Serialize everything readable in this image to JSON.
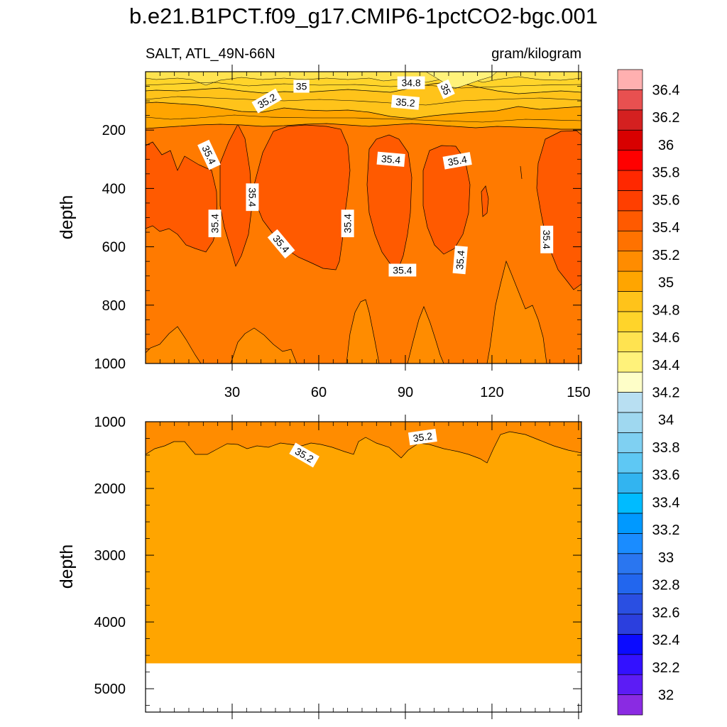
{
  "chart_data": {
    "type": "contour",
    "title": "b.e21.B1PCT.f09_g17.CMIP6-1pctCO2-bgc.001",
    "variable_label": "SALT, ATL_49N-66N",
    "units_label": "gram/kilogram",
    "panels": [
      {
        "name": "upper",
        "xlim": [
          0,
          151
        ],
        "ylim": [
          0,
          1000
        ],
        "y_reversed": true,
        "ylabel": "depth",
        "x_ticks": [
          30,
          60,
          90,
          120,
          150
        ],
        "x_tick_labels": [
          "30",
          "60",
          "90",
          "120",
          "150"
        ],
        "y_ticks": [
          200,
          400,
          600,
          800,
          1000
        ],
        "y_tick_labels": [
          "200",
          "400",
          "600",
          "800",
          "1000"
        ],
        "contour_labels": [
          {
            "text": "34.8",
            "x": 92,
            "y": 38,
            "angle": 0
          },
          {
            "text": "35",
            "x": 54,
            "y": 50,
            "angle": 0
          },
          {
            "text": "35",
            "x": 104,
            "y": 60,
            "angle": 65
          },
          {
            "text": "35.2",
            "x": 42,
            "y": 100,
            "angle": -30
          },
          {
            "text": "35.2",
            "x": 90,
            "y": 105,
            "angle": 5
          },
          {
            "text": "35.4",
            "x": 22,
            "y": 285,
            "angle": 65
          },
          {
            "text": "35.4",
            "x": 85,
            "y": 300,
            "angle": 5
          },
          {
            "text": "35.4",
            "x": 108,
            "y": 305,
            "angle": -10
          },
          {
            "text": "35.4",
            "x": 37,
            "y": 430,
            "angle": 90
          },
          {
            "text": "35.4",
            "x": 24,
            "y": 520,
            "angle": -90
          },
          {
            "text": "35.4",
            "x": 70,
            "y": 520,
            "angle": -90
          },
          {
            "text": "35.4",
            "x": 139,
            "y": 575,
            "angle": 90
          },
          {
            "text": "35.4",
            "x": 47,
            "y": 590,
            "angle": 50
          },
          {
            "text": "35.4",
            "x": 109,
            "y": 645,
            "angle": -85
          },
          {
            "text": "35.4",
            "x": 89,
            "y": 680,
            "angle": 0
          }
        ]
      },
      {
        "name": "lower",
        "xlim": [
          0,
          151
        ],
        "ylim": [
          1000,
          5350
        ],
        "y_reversed": true,
        "ylabel": "depth",
        "y_ticks": [
          1000,
          2000,
          3000,
          4000,
          5000
        ],
        "y_tick_labels": [
          "1000",
          "2000",
          "3000",
          "4000",
          "5000"
        ],
        "ocean_floor_depth": 4620,
        "contour_labels": [
          {
            "text": "35.2",
            "x": 55,
            "y": 1500,
            "angle": 30
          },
          {
            "text": "35.2",
            "x": 96,
            "y": 1230,
            "angle": -8
          }
        ]
      }
    ],
    "colorbar": {
      "levels": [
        32,
        32.2,
        32.4,
        32.6,
        32.8,
        33,
        33.2,
        33.4,
        33.6,
        33.8,
        34,
        34.2,
        34.4,
        34.6,
        34.8,
        35,
        35.2,
        35.4,
        35.6,
        35.8,
        36,
        36.2,
        36.4
      ],
      "labels": [
        "32",
        "32.2",
        "32.4",
        "32.6",
        "32.8",
        "33",
        "33.2",
        "33.4",
        "33.6",
        "33.8",
        "34",
        "34.2",
        "34.4",
        "34.6",
        "34.8",
        "35",
        "35.2",
        "35.4",
        "35.6",
        "35.8",
        "36",
        "36.2",
        "36.4"
      ],
      "colors": [
        "#8a2be2",
        "#5c1cf5",
        "#3311ff",
        "#0b0bff",
        "#2b3fde",
        "#2a4fe2",
        "#2266ee",
        "#2a76f0",
        "#1a8cff",
        "#0099ff",
        "#00bbff",
        "#32b4f0",
        "#5ec8f4",
        "#7fd0f2",
        "#9fd8f0",
        "#b8dff2",
        "#fefec8",
        "#fff27a",
        "#ffe350",
        "#ffd42a",
        "#ffc31a",
        "#ffa500",
        "#ff8c00",
        "#ff7200",
        "#ff5a00",
        "#ff3f00",
        "#ff2800",
        "#ff0000",
        "#d80000",
        "#d42020",
        "#e85050",
        "#ffb0b0"
      ]
    },
    "dominant_values": {
      "surface": "34.4-35.0",
      "cores": "35.4-35.6",
      "mid": "35.2-35.4",
      "deep": "35.0-35.2"
    }
  }
}
